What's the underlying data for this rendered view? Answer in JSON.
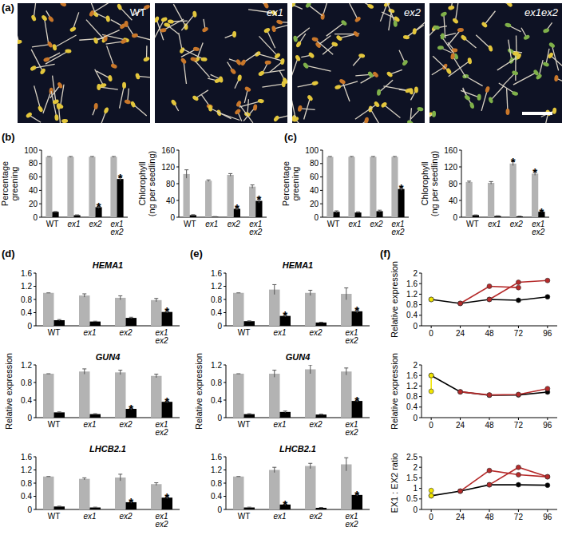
{
  "panel_labels": [
    "(a)",
    "(b)",
    "(c)",
    "(d)",
    "(e)",
    "(f)"
  ],
  "photos": {
    "labels": [
      "WT",
      "ex1",
      "ex2",
      "ex1ex2"
    ]
  },
  "chart_data": [
    {
      "type": "bar",
      "ylabel": [
        "Percentage",
        "greening"
      ],
      "categories": [
        "WT",
        "ex1",
        "ex2",
        "ex1 ex2"
      ],
      "ylim": [
        0,
        100
      ],
      "yticks": [
        0,
        20,
        40,
        60,
        80,
        100
      ],
      "series": [
        {
          "color": "#b3b3b3",
          "values": [
            90,
            90,
            90,
            90
          ],
          "errors": [
            0.5,
            0.5,
            0.5,
            0.5
          ]
        },
        {
          "color": "#000000",
          "values": [
            8,
            3,
            15,
            57
          ],
          "errors": [
            0.5,
            0.5,
            1.5,
            2.5
          ]
        }
      ],
      "annotations": [
        {
          "series": 1,
          "index": 2,
          "text": "*"
        },
        {
          "series": 1,
          "index": 3,
          "text": "*"
        }
      ]
    },
    {
      "type": "bar",
      "ylabel": [
        "Chlorophyll",
        "(ng per seedling)"
      ],
      "categories": [
        "WT",
        "ex1",
        "ex2",
        "ex1 ex2"
      ],
      "ylim": [
        0,
        160
      ],
      "yticks": [
        0,
        40,
        80,
        120,
        160
      ],
      "series": [
        {
          "color": "#b3b3b3",
          "values": [
            103,
            87,
            101,
            73
          ],
          "errors": [
            10,
            2,
            3,
            4
          ]
        },
        {
          "color": "#000000",
          "values": [
            5,
            1,
            20,
            39
          ],
          "errors": [
            1,
            0.5,
            3,
            5
          ]
        }
      ],
      "annotations": [
        {
          "series": 1,
          "index": 2,
          "text": "*"
        },
        {
          "series": 1,
          "index": 3,
          "text": "*"
        }
      ]
    },
    {
      "type": "bar",
      "ylabel": [
        "Percentage",
        "greening"
      ],
      "categories": [
        "WT",
        "ex1",
        "ex2",
        "ex1 ex2"
      ],
      "ylim": [
        0,
        100
      ],
      "yticks": [
        0,
        20,
        40,
        60,
        80,
        100
      ],
      "series": [
        {
          "color": "#b3b3b3",
          "values": [
            90,
            90,
            90,
            90
          ],
          "errors": [
            0.5,
            0.5,
            0.5,
            0.5
          ]
        },
        {
          "color": "#000000",
          "values": [
            8,
            7,
            9,
            42
          ],
          "errors": [
            1.5,
            1,
            1.5,
            2
          ]
        }
      ],
      "annotations": [
        {
          "series": 1,
          "index": 3,
          "text": "*"
        }
      ]
    },
    {
      "type": "bar",
      "ylabel": [
        "Chlorophyll",
        "(ng per seedling)"
      ],
      "categories": [
        "WT",
        "ex1",
        "ex2",
        "ex1 ex2"
      ],
      "ylim": [
        0,
        160
      ],
      "yticks": [
        0,
        40,
        80,
        120,
        160
      ],
      "series": [
        {
          "color": "#b3b3b3",
          "values": [
            84,
            82,
            128,
            104
          ],
          "errors": [
            2,
            3,
            5,
            4
          ]
        },
        {
          "color": "#000000",
          "values": [
            5,
            3,
            2,
            13
          ],
          "errors": [
            0.5,
            0.5,
            0.5,
            1
          ]
        }
      ],
      "annotations": [
        {
          "series": 0,
          "index": 2,
          "text": "*"
        },
        {
          "series": 0,
          "index": 3,
          "text": "*"
        },
        {
          "series": 1,
          "index": 3,
          "text": "*"
        }
      ]
    },
    {
      "type": "bar",
      "title": "HEMA1",
      "categories": [
        "WT",
        "ex1",
        "ex2",
        "ex1 ex2"
      ],
      "ylim": [
        0,
        1.6
      ],
      "yticks": [
        0,
        0.4,
        0.8,
        1.2,
        1.6
      ],
      "series": [
        {
          "color": "#b3b3b3",
          "values": [
            1,
            0.92,
            0.85,
            0.78
          ],
          "errors": [
            0,
            0.05,
            0.06,
            0.05
          ]
        },
        {
          "color": "#000000",
          "values": [
            0.17,
            0.13,
            0.24,
            0.42
          ],
          "errors": [
            0.02,
            0.01,
            0.02,
            0.03
          ]
        }
      ],
      "annotations": [
        {
          "series": 1,
          "index": 3,
          "text": "*"
        }
      ]
    },
    {
      "type": "bar",
      "title": "GUN4",
      "ylabel": [
        "Relative expression"
      ],
      "categories": [
        "WT",
        "ex1",
        "ex2",
        "ex1 ex2"
      ],
      "ylim": [
        0,
        1.2
      ],
      "yticks": [
        0,
        0.4,
        0.8,
        1.2
      ],
      "series": [
        {
          "color": "#b3b3b3",
          "values": [
            1,
            1.05,
            1.03,
            0.95
          ],
          "errors": [
            0,
            0.06,
            0.05,
            0.04
          ]
        },
        {
          "color": "#000000",
          "values": [
            0.12,
            0.08,
            0.2,
            0.36
          ],
          "errors": [
            0.01,
            0.01,
            0.02,
            0.02
          ]
        }
      ],
      "annotations": [
        {
          "series": 1,
          "index": 2,
          "text": "*"
        },
        {
          "series": 1,
          "index": 3,
          "text": "*"
        }
      ]
    },
    {
      "type": "bar",
      "title": "LHCB2.1",
      "categories": [
        "WT",
        "ex1",
        "ex2",
        "ex1 ex2"
      ],
      "ylim": [
        0,
        1.6
      ],
      "yticks": [
        0,
        0.4,
        0.8,
        1.2,
        1.6
      ],
      "series": [
        {
          "color": "#b3b3b3",
          "values": [
            1,
            0.93,
            0.97,
            0.77
          ],
          "errors": [
            0,
            0.03,
            0.1,
            0.04
          ]
        },
        {
          "color": "#000000",
          "values": [
            0.09,
            0.06,
            0.22,
            0.36
          ],
          "errors": [
            0.01,
            0.01,
            0.03,
            0.03
          ]
        }
      ],
      "annotations": [
        {
          "series": 1,
          "index": 2,
          "text": "*"
        },
        {
          "series": 1,
          "index": 3,
          "text": "*"
        }
      ]
    },
    {
      "type": "bar",
      "title": "HEMA1",
      "categories": [
        "WT",
        "ex1",
        "ex2",
        "ex1 ex2"
      ],
      "ylim": [
        0,
        1.6
      ],
      "yticks": [
        0,
        0.4,
        0.8,
        1.2,
        1.6
      ],
      "series": [
        {
          "color": "#b3b3b3",
          "values": [
            1,
            1.1,
            1.0,
            0.97
          ],
          "errors": [
            0,
            0.15,
            0.08,
            0.18
          ]
        },
        {
          "color": "#000000",
          "values": [
            0.14,
            0.3,
            0.1,
            0.44
          ],
          "errors": [
            0.01,
            0.03,
            0.01,
            0.05
          ]
        }
      ],
      "annotations": [
        {
          "series": 1,
          "index": 1,
          "text": "*"
        },
        {
          "series": 1,
          "index": 3,
          "text": "*"
        }
      ]
    },
    {
      "type": "bar",
      "title": "GUN4",
      "ylabel": [
        "Relative expression"
      ],
      "categories": [
        "WT",
        "ex1",
        "ex2",
        "ex1 ex2"
      ],
      "ylim": [
        0,
        1.2
      ],
      "yticks": [
        0,
        0.4,
        0.8,
        1.2
      ],
      "series": [
        {
          "color": "#b3b3b3",
          "values": [
            1,
            1.0,
            1.1,
            1.05
          ],
          "errors": [
            0,
            0.08,
            0.1,
            0.08
          ]
        },
        {
          "color": "#000000",
          "values": [
            0.08,
            0.13,
            0.07,
            0.38
          ],
          "errors": [
            0.01,
            0.02,
            0.01,
            0.02
          ]
        }
      ],
      "annotations": [
        {
          "series": 1,
          "index": 3,
          "text": "*"
        }
      ]
    },
    {
      "type": "bar",
      "title": "LHCB2.1",
      "categories": [
        "WT",
        "ex1",
        "ex2",
        "ex1 ex2"
      ],
      "ylim": [
        0,
        1.6
      ],
      "yticks": [
        0,
        0.4,
        0.8,
        1.2,
        1.6
      ],
      "series": [
        {
          "color": "#b3b3b3",
          "values": [
            1,
            1.2,
            1.32,
            1.37
          ],
          "errors": [
            0,
            0.08,
            0.08,
            0.2
          ]
        },
        {
          "color": "#000000",
          "values": [
            0.06,
            0.15,
            0.05,
            0.44
          ],
          "errors": [
            0.01,
            0.02,
            0.01,
            0.03
          ]
        }
      ],
      "annotations": [
        {
          "series": 1,
          "index": 1,
          "text": "*"
        },
        {
          "series": 1,
          "index": 3,
          "text": "*"
        }
      ]
    },
    {
      "type": "line",
      "ylabel": [
        "Relative expression"
      ],
      "xlim": [
        -8,
        104
      ],
      "xticks": [
        0,
        24,
        48,
        72,
        96
      ],
      "ylim": [
        0,
        2
      ],
      "yticks": [
        0,
        0.4,
        0.8,
        1.2,
        1.6,
        2
      ],
      "series": [
        {
          "color": "#000000",
          "marker": "circle",
          "x": [
            0,
            24,
            48,
            72,
            96
          ],
          "values": [
            1.0,
            0.85,
            1.0,
            0.97,
            1.1
          ]
        },
        {
          "color": "#b52a2a",
          "marker": "circle",
          "x": [
            24,
            48,
            72
          ],
          "values": [
            0.85,
            1.5,
            1.45
          ]
        },
        {
          "color": "#b52a2a",
          "marker": "circle",
          "x": [
            48,
            72,
            96
          ],
          "values": [
            1.0,
            1.65,
            1.72
          ]
        },
        {
          "color": "#f2e600",
          "marker": "circle",
          "x": [
            0
          ],
          "values": [
            1.0
          ]
        }
      ]
    },
    {
      "type": "line",
      "ylabel": [
        "Relative expression"
      ],
      "xlim": [
        -8,
        104
      ],
      "xticks": [
        0,
        24,
        48,
        72,
        96
      ],
      "ylim": [
        0,
        2
      ],
      "yticks": [
        0,
        0.4,
        0.8,
        1.2,
        1.6,
        2
      ],
      "series": [
        {
          "color": "#000000",
          "marker": "circle",
          "x": [
            0,
            24,
            48,
            72,
            96
          ],
          "values": [
            1.6,
            0.98,
            0.85,
            0.86,
            0.97
          ]
        },
        {
          "color": "#b52a2a",
          "marker": "circle",
          "x": [
            24,
            48,
            72,
            96
          ],
          "values": [
            0.98,
            0.86,
            0.88,
            1.1
          ]
        },
        {
          "color": "#f2e600",
          "marker": "circle",
          "x": [
            0,
            0
          ],
          "values": [
            1.0,
            1.6
          ]
        }
      ]
    },
    {
      "type": "line",
      "ylabel": [
        "EX1 : EX2 ratio"
      ],
      "xlim": [
        -8,
        104
      ],
      "xticks": [
        0,
        24,
        48,
        72,
        96
      ],
      "ylim": [
        0,
        2.5
      ],
      "yticks": [
        0,
        0.5,
        1,
        1.5,
        2,
        2.5
      ],
      "series": [
        {
          "color": "#000000",
          "marker": "circle",
          "x": [
            0,
            24,
            48,
            72,
            96
          ],
          "values": [
            0.65,
            0.87,
            1.17,
            1.17,
            1.15
          ]
        },
        {
          "color": "#b52a2a",
          "marker": "circle",
          "x": [
            24,
            48,
            72,
            96
          ],
          "values": [
            0.87,
            1.85,
            1.65,
            1.55
          ]
        },
        {
          "color": "#b52a2a",
          "marker": "circle",
          "x": [
            48,
            72,
            96
          ],
          "values": [
            1.17,
            2.0,
            1.55
          ]
        },
        {
          "color": "#f2e600",
          "marker": "circle",
          "x": [
            0,
            0
          ],
          "values": [
            0.65,
            0.9
          ]
        }
      ]
    }
  ]
}
